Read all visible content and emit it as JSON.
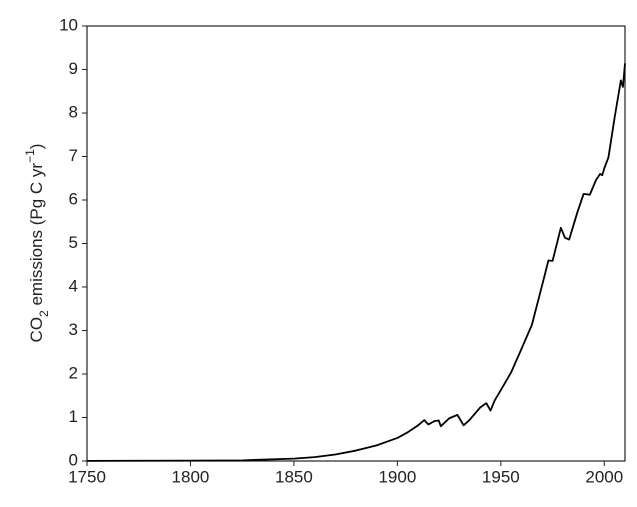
{
  "chart_data": {
    "type": "line",
    "y_label": [
      {
        "text": "CO"
      },
      {
        "text": "2",
        "shift": "sub"
      },
      {
        "text": " emissions (Pg C yr"
      },
      {
        "text": "−1",
        "shift": "super"
      },
      {
        "text": ")"
      }
    ],
    "x": [
      1750,
      1800,
      1825,
      1850,
      1860,
      1870,
      1880,
      1890,
      1900,
      1905,
      1910,
      1913,
      1915,
      1918,
      1920,
      1921,
      1925,
      1929,
      1930,
      1932,
      1935,
      1940,
      1943,
      1945,
      1947,
      1950,
      1955,
      1960,
      1965,
      1970,
      1973,
      1975,
      1979,
      1981,
      1983,
      1987,
      1990,
      1993,
      1996,
      1998,
      1999,
      2000,
      2002,
      2005,
      2008,
      2009,
      2010
    ],
    "series": [
      {
        "color": "#000000",
        "values": [
          0.003,
          0.008,
          0.015,
          0.054,
          0.09,
          0.15,
          0.24,
          0.36,
          0.53,
          0.66,
          0.82,
          0.94,
          0.84,
          0.92,
          0.93,
          0.8,
          0.98,
          1.06,
          0.98,
          0.82,
          0.95,
          1.23,
          1.33,
          1.16,
          1.39,
          1.63,
          2.04,
          2.58,
          3.13,
          4.05,
          4.61,
          4.6,
          5.36,
          5.13,
          5.09,
          5.72,
          6.14,
          6.12,
          6.46,
          6.6,
          6.57,
          6.73,
          6.98,
          7.9,
          8.75,
          8.6,
          9.14
        ]
      }
    ],
    "xlim": [
      1750,
      2010
    ],
    "xticks": [
      1750,
      1800,
      1850,
      1900,
      1950,
      2000
    ],
    "ylim": [
      0,
      10
    ],
    "yticks": [
      0,
      1,
      2,
      3,
      4,
      5,
      6,
      7,
      8,
      9,
      10
    ]
  }
}
